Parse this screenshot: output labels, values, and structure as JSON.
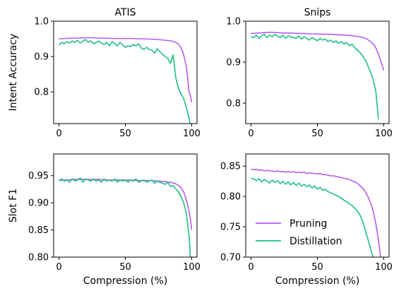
{
  "figure": {
    "legend": {
      "placement": "lower-left of bottom-right panel",
      "entries": [
        {
          "label": "Pruning",
          "color": "#b45cf0"
        },
        {
          "label": "Distillation",
          "color": "#1fbf82"
        }
      ]
    }
  },
  "chart_data": [
    {
      "type": "line",
      "panel": "top-left",
      "title": "ATIS",
      "xlabel": "",
      "ylabel": "Intent Accuracy",
      "xlim": [
        -4,
        104
      ],
      "ylim": [
        0.71,
        1.0
      ],
      "xticks": [
        0,
        50,
        100
      ],
      "yticks": [
        0.8,
        0.9,
        1.0
      ],
      "series": [
        {
          "name": "Pruning",
          "color": "#b45cf0",
          "x": [
            0,
            5,
            10,
            15,
            20,
            25,
            30,
            35,
            40,
            45,
            50,
            55,
            60,
            65,
            70,
            75,
            80,
            85,
            88,
            90,
            92,
            94,
            96,
            97,
            98,
            99,
            100
          ],
          "y": [
            0.95,
            0.951,
            0.952,
            0.952,
            0.953,
            0.953,
            0.952,
            0.952,
            0.951,
            0.951,
            0.951,
            0.951,
            0.95,
            0.95,
            0.949,
            0.948,
            0.946,
            0.944,
            0.94,
            0.935,
            0.925,
            0.905,
            0.87,
            0.84,
            0.8,
            0.79,
            0.77
          ]
        },
        {
          "name": "Distillation",
          "color": "#1fbf82",
          "x": [
            0,
            2,
            4,
            6,
            8,
            10,
            12,
            14,
            16,
            18,
            20,
            22,
            24,
            26,
            28,
            30,
            32,
            34,
            36,
            38,
            40,
            42,
            44,
            46,
            48,
            50,
            52,
            54,
            56,
            58,
            60,
            62,
            64,
            66,
            68,
            70,
            72,
            74,
            76,
            78,
            80,
            82,
            84,
            86,
            88,
            90,
            92,
            94,
            96,
            98,
            100
          ],
          "y": [
            0.932,
            0.94,
            0.936,
            0.942,
            0.938,
            0.944,
            0.94,
            0.946,
            0.938,
            0.944,
            0.948,
            0.94,
            0.944,
            0.936,
            0.94,
            0.944,
            0.938,
            0.934,
            0.94,
            0.93,
            0.942,
            0.936,
            0.93,
            0.94,
            0.932,
            0.926,
            0.93,
            0.928,
            0.934,
            0.93,
            0.936,
            0.924,
            0.92,
            0.926,
            0.92,
            0.918,
            0.91,
            0.922,
            0.914,
            0.906,
            0.9,
            0.895,
            0.88,
            0.905,
            0.84,
            0.81,
            0.795,
            0.78,
            0.755,
            0.725,
            0.69
          ]
        }
      ]
    },
    {
      "type": "line",
      "panel": "top-right",
      "title": "Snips",
      "xlabel": "",
      "ylabel": "",
      "xlim": [
        -4,
        104
      ],
      "ylim": [
        0.75,
        1.0
      ],
      "xticks": [
        0,
        50,
        100
      ],
      "yticks": [
        0.8,
        0.9,
        1.0
      ],
      "series": [
        {
          "name": "Pruning",
          "color": "#b45cf0",
          "x": [
            0,
            5,
            10,
            15,
            20,
            25,
            30,
            35,
            40,
            45,
            50,
            55,
            60,
            65,
            70,
            75,
            80,
            85,
            88,
            90,
            92,
            94,
            96,
            98,
            100
          ],
          "y": [
            0.97,
            0.971,
            0.972,
            0.973,
            0.972,
            0.971,
            0.971,
            0.97,
            0.97,
            0.969,
            0.969,
            0.968,
            0.968,
            0.967,
            0.966,
            0.965,
            0.963,
            0.96,
            0.955,
            0.95,
            0.945,
            0.935,
            0.92,
            0.9,
            0.88
          ]
        },
        {
          "name": "Distillation",
          "color": "#1fbf82",
          "x": [
            0,
            2,
            4,
            6,
            8,
            10,
            12,
            14,
            16,
            18,
            20,
            22,
            24,
            26,
            28,
            30,
            32,
            34,
            36,
            38,
            40,
            42,
            44,
            46,
            48,
            50,
            52,
            54,
            56,
            58,
            60,
            62,
            64,
            66,
            68,
            70,
            72,
            74,
            76,
            78,
            80,
            82,
            84,
            86,
            88,
            90,
            92,
            94,
            96
          ],
          "y": [
            0.962,
            0.96,
            0.966,
            0.958,
            0.964,
            0.968,
            0.96,
            0.966,
            0.962,
            0.968,
            0.964,
            0.96,
            0.966,
            0.958,
            0.964,
            0.962,
            0.96,
            0.958,
            0.964,
            0.956,
            0.962,
            0.958,
            0.954,
            0.96,
            0.956,
            0.952,
            0.958,
            0.954,
            0.956,
            0.95,
            0.954,
            0.948,
            0.952,
            0.946,
            0.95,
            0.944,
            0.948,
            0.94,
            0.944,
            0.936,
            0.93,
            0.924,
            0.916,
            0.906,
            0.892,
            0.876,
            0.858,
            0.83,
            0.76
          ]
        }
      ]
    },
    {
      "type": "line",
      "panel": "bottom-left",
      "title": "",
      "xlabel": "Compression (%)",
      "ylabel": "Slot F1",
      "xlim": [
        -4,
        104
      ],
      "ylim": [
        0.8,
        0.99
      ],
      "xticks": [
        0,
        50,
        100
      ],
      "yticks": [
        0.8,
        0.85,
        0.9,
        0.95
      ],
      "series": [
        {
          "name": "Pruning",
          "color": "#b45cf0",
          "x": [
            0,
            5,
            10,
            15,
            20,
            25,
            30,
            35,
            40,
            45,
            50,
            55,
            60,
            65,
            70,
            75,
            80,
            85,
            88,
            90,
            92,
            94,
            96,
            98,
            99,
            100
          ],
          "y": [
            0.942,
            0.942,
            0.943,
            0.943,
            0.943,
            0.943,
            0.943,
            0.942,
            0.942,
            0.942,
            0.942,
            0.942,
            0.941,
            0.941,
            0.941,
            0.94,
            0.939,
            0.937,
            0.935,
            0.932,
            0.928,
            0.92,
            0.905,
            0.885,
            0.87,
            0.85
          ]
        },
        {
          "name": "Distillation",
          "color": "#1fbf82",
          "x": [
            0,
            2,
            4,
            6,
            8,
            10,
            12,
            14,
            16,
            18,
            20,
            22,
            24,
            26,
            28,
            30,
            32,
            34,
            36,
            38,
            40,
            42,
            44,
            46,
            48,
            50,
            52,
            54,
            56,
            58,
            60,
            62,
            64,
            66,
            68,
            70,
            72,
            74,
            76,
            78,
            80,
            82,
            84,
            86,
            88,
            90,
            92,
            94,
            96,
            98,
            99
          ],
          "y": [
            0.94,
            0.944,
            0.94,
            0.942,
            0.938,
            0.944,
            0.94,
            0.942,
            0.946,
            0.938,
            0.944,
            0.942,
            0.94,
            0.944,
            0.94,
            0.942,
            0.938,
            0.944,
            0.94,
            0.942,
            0.94,
            0.944,
            0.938,
            0.942,
            0.94,
            0.942,
            0.938,
            0.942,
            0.94,
            0.944,
            0.938,
            0.94,
            0.942,
            0.938,
            0.94,
            0.942,
            0.936,
            0.94,
            0.938,
            0.936,
            0.934,
            0.938,
            0.93,
            0.932,
            0.926,
            0.92,
            0.912,
            0.9,
            0.88,
            0.84,
            0.8
          ]
        }
      ]
    },
    {
      "type": "line",
      "panel": "bottom-right",
      "title": "",
      "xlabel": "Compression (%)",
      "ylabel": "",
      "xlim": [
        -4,
        104
      ],
      "ylim": [
        0.7,
        0.87
      ],
      "xticks": [
        0,
        50,
        100
      ],
      "yticks": [
        0.7,
        0.75,
        0.8,
        0.85
      ],
      "series": [
        {
          "name": "Pruning",
          "color": "#b45cf0",
          "x": [
            0,
            2,
            4,
            6,
            8,
            10,
            12,
            14,
            16,
            18,
            20,
            22,
            24,
            26,
            28,
            30,
            32,
            34,
            36,
            38,
            40,
            42,
            44,
            46,
            48,
            50,
            52,
            54,
            56,
            58,
            60,
            62,
            64,
            66,
            68,
            70,
            72,
            74,
            76,
            78,
            80,
            82,
            84,
            86,
            88,
            90,
            92,
            94,
            96,
            98
          ],
          "y": [
            0.845,
            0.844,
            0.845,
            0.843,
            0.844,
            0.842,
            0.843,
            0.842,
            0.842,
            0.841,
            0.842,
            0.841,
            0.841,
            0.84,
            0.841,
            0.84,
            0.841,
            0.839,
            0.84,
            0.839,
            0.84,
            0.838,
            0.839,
            0.838,
            0.838,
            0.837,
            0.838,
            0.836,
            0.836,
            0.835,
            0.834,
            0.834,
            0.833,
            0.832,
            0.831,
            0.83,
            0.829,
            0.828,
            0.826,
            0.824,
            0.822,
            0.818,
            0.814,
            0.808,
            0.8,
            0.79,
            0.776,
            0.756,
            0.728,
            0.695
          ]
        },
        {
          "name": "Distillation",
          "color": "#1fbf82",
          "x": [
            0,
            2,
            4,
            6,
            8,
            10,
            12,
            14,
            16,
            18,
            20,
            22,
            24,
            26,
            28,
            30,
            32,
            34,
            36,
            38,
            40,
            42,
            44,
            46,
            48,
            50,
            52,
            54,
            56,
            58,
            60,
            62,
            64,
            66,
            68,
            70,
            72,
            74,
            76,
            78,
            80,
            82,
            84,
            86,
            88,
            90,
            92,
            94,
            96
          ],
          "y": [
            0.83,
            0.829,
            0.826,
            0.829,
            0.824,
            0.828,
            0.825,
            0.822,
            0.827,
            0.823,
            0.826,
            0.821,
            0.825,
            0.82,
            0.824,
            0.819,
            0.823,
            0.818,
            0.822,
            0.817,
            0.82,
            0.816,
            0.819,
            0.814,
            0.817,
            0.812,
            0.815,
            0.81,
            0.812,
            0.808,
            0.806,
            0.804,
            0.802,
            0.8,
            0.797,
            0.794,
            0.791,
            0.788,
            0.785,
            0.781,
            0.776,
            0.77,
            0.76,
            0.745,
            0.73,
            0.714,
            0.7,
            0.688,
            0.672
          ]
        }
      ]
    }
  ]
}
